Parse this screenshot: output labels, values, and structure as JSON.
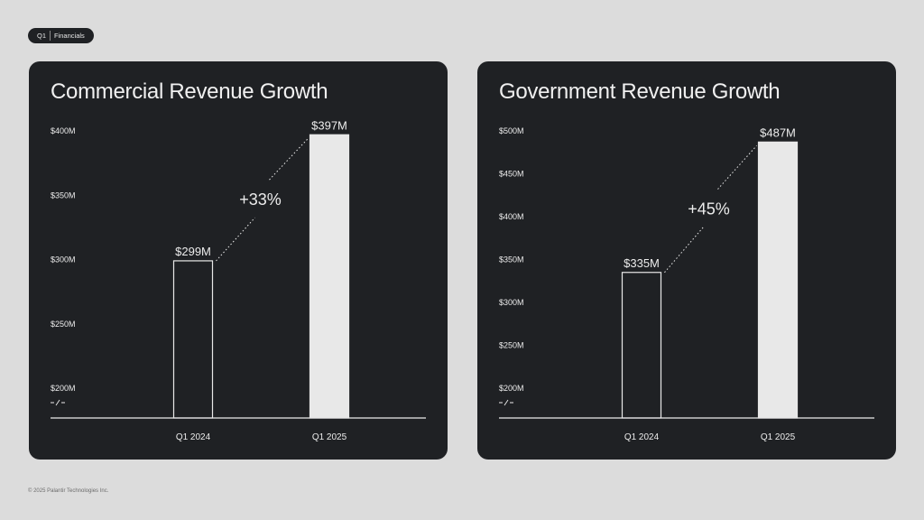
{
  "header": {
    "period": "Q1",
    "section": "Financials"
  },
  "footer": {
    "copyright": "© 2025 Palantir Technologies Inc."
  },
  "colors": {
    "page_bg": "#dcdcdc",
    "card_bg": "#1f2124",
    "text": "#ececec",
    "bar_fill": "#e8e8e8",
    "bar_outline": "#e8e8e8"
  },
  "chart_data": [
    {
      "type": "bar",
      "title": "Commercial Revenue Growth",
      "categories": [
        "Q1 2024",
        "Q1 2025"
      ],
      "values": [
        299,
        397
      ],
      "value_labels": [
        "$299M",
        "$397M"
      ],
      "growth_label": "+33%",
      "yticks": [
        200,
        250,
        300,
        350,
        400
      ],
      "ytick_labels": [
        "$200M",
        "$250M",
        "$300M",
        "$350M",
        "$400M"
      ],
      "ylim": [
        200,
        400
      ],
      "axis_break": true,
      "bar_styles": [
        "outline",
        "filled"
      ],
      "grid": false
    },
    {
      "type": "bar",
      "title": "Government Revenue Growth",
      "categories": [
        "Q1 2024",
        "Q1 2025"
      ],
      "values": [
        335,
        487
      ],
      "value_labels": [
        "$335M",
        "$487M"
      ],
      "growth_label": "+45%",
      "yticks": [
        200,
        250,
        300,
        350,
        400,
        450,
        500
      ],
      "ytick_labels": [
        "$200M",
        "$250M",
        "$300M",
        "$350M",
        "$400M",
        "$450M",
        "$500M"
      ],
      "ylim": [
        200,
        500
      ],
      "axis_break": true,
      "bar_styles": [
        "outline",
        "filled"
      ],
      "grid": false
    }
  ]
}
